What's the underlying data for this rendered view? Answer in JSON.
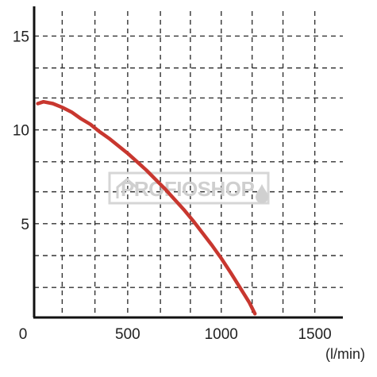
{
  "chart_data": {
    "type": "line",
    "xlabel": "(l/min)",
    "ylabel": "",
    "xlim": [
      0,
      1650
    ],
    "ylim": [
      0,
      16.5
    ],
    "x_ticks": [
      0,
      500,
      1000,
      1500
    ],
    "y_ticks": [
      5,
      10,
      15
    ],
    "x_gridlines": [
      150,
      325,
      500,
      675,
      835,
      1000,
      1165,
      1330,
      1500
    ],
    "y_gridlines": [
      1.6,
      3.3,
      5,
      6.7,
      8.3,
      10,
      11.7,
      13.3,
      15
    ],
    "grid": true,
    "grid_style": "dashed",
    "series": [
      {
        "color": "#c8372f",
        "x": [
          20,
          50,
          100,
          150,
          200,
          250,
          300,
          350,
          400,
          450,
          500,
          550,
          600,
          650,
          700,
          750,
          800,
          850,
          900,
          950,
          1000,
          1050,
          1100,
          1150,
          1180
        ],
        "y": [
          11.4,
          11.5,
          11.4,
          11.2,
          10.95,
          10.6,
          10.3,
          9.9,
          9.55,
          9.15,
          8.75,
          8.3,
          7.85,
          7.35,
          6.85,
          6.3,
          5.75,
          5.15,
          4.5,
          3.85,
          3.15,
          2.4,
          1.6,
          0.8,
          0.2
        ]
      }
    ],
    "x_tick_labels": [
      "0",
      "500",
      "1000",
      "1500"
    ],
    "y_tick_labels": [
      "5",
      "10",
      "15"
    ]
  },
  "watermark": {
    "text": "PROFIOSHOP",
    "color": "#cfcfcf"
  }
}
